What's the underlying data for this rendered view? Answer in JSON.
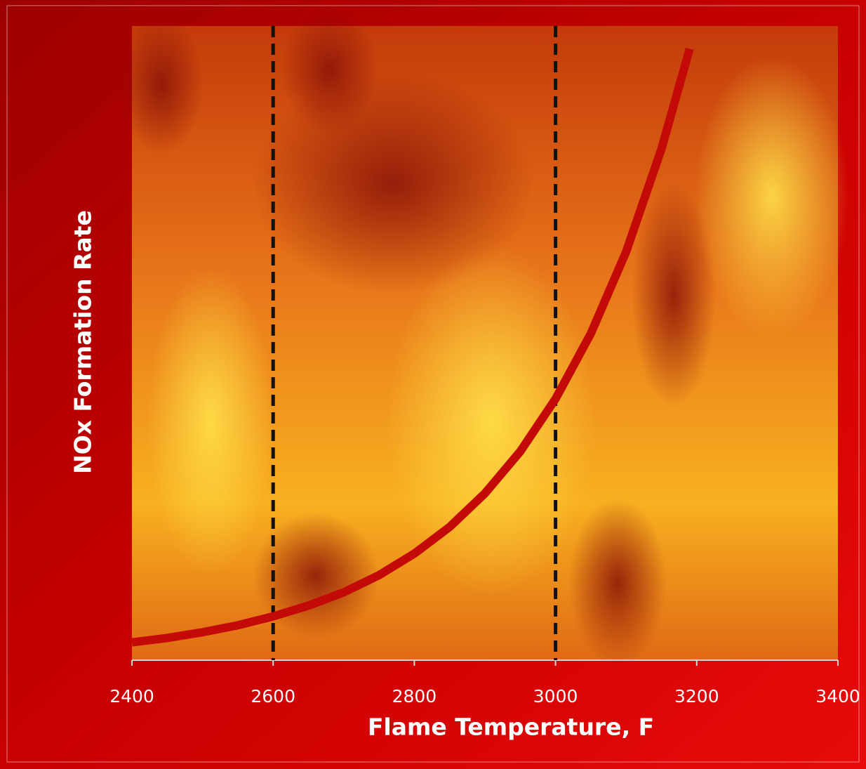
{
  "chart_data": {
    "type": "line",
    "x_label": "Flame Temperature, F",
    "y_label": "NOx Formation Rate",
    "x": [
      2400,
      2450,
      2500,
      2550,
      2600,
      2650,
      2700,
      2750,
      2800,
      2850,
      2900,
      2950,
      3000,
      3050,
      3100,
      3150,
      3190
    ],
    "series": [
      {
        "color": "#c40a06",
        "values": [
          2.8,
          3.5,
          4.4,
          5.5,
          6.9,
          8.6,
          10.7,
          13.4,
          16.8,
          21.0,
          26.3,
          32.9,
          41.2,
          51.5,
          64.4,
          80.6,
          96.4
        ]
      }
    ],
    "xlim": [
      2400,
      3400
    ],
    "xticks": [
      2400,
      2600,
      2800,
      3000,
      3200,
      3400
    ],
    "ylim": [
      0,
      100
    ],
    "vlines": [
      2600,
      3000
    ],
    "vline_color": "#111111"
  }
}
